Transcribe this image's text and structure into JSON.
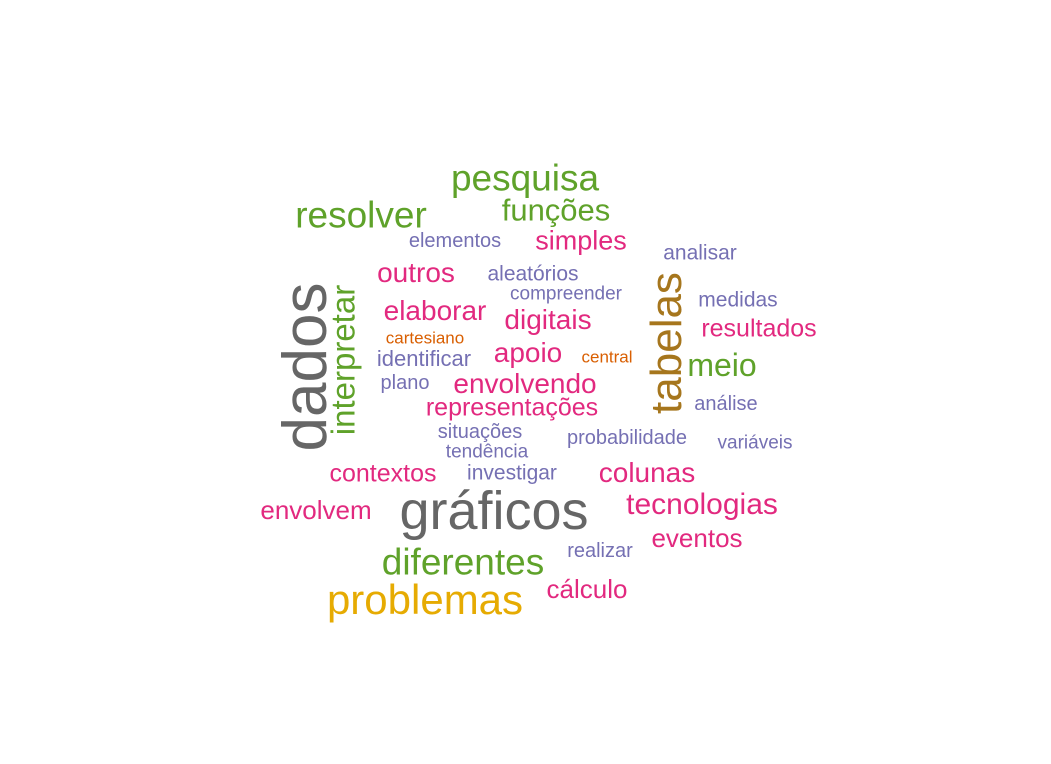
{
  "words": {
    "dados": "dados",
    "graficos": "gráficos",
    "tabelas": "tabelas",
    "problemas": "problemas",
    "diferentes": "diferentes",
    "interpretar": "interpretar",
    "pesquisa": "pesquisa",
    "resolver": "resolver",
    "funcoes": "funções",
    "meio": "meio",
    "simples": "simples",
    "outros": "outros",
    "elaborar": "elaborar",
    "digitais": "digitais",
    "apoio": "apoio",
    "envolvendo": "envolvendo",
    "representacoes": "representações",
    "contextos": "contextos",
    "envolvem": "envolvem",
    "colunas": "colunas",
    "tecnologias": "tecnologias",
    "eventos": "eventos",
    "calculo": "cálculo",
    "resultados": "resultados",
    "elementos": "elementos",
    "aleatorios": "aleatórios",
    "compreender": "compreender",
    "analisar": "analisar",
    "medidas": "medidas",
    "identificar": "identificar",
    "plano": "plano",
    "situacoes": "situações",
    "tendencia": "tendência",
    "investigar": "investigar",
    "probabilidade": "probabilidade",
    "analise": "análise",
    "variaveis": "variáveis",
    "realizar": "realizar",
    "cartesiano": "cartesiano",
    "central": "central"
  },
  "colors": {
    "green": "#5fa22a",
    "pink": "#e2297f",
    "purple": "#7570b3",
    "gray": "#666666",
    "orange": "#d95f02",
    "gold": "#e6ab02",
    "brown": "#a6761d"
  }
}
